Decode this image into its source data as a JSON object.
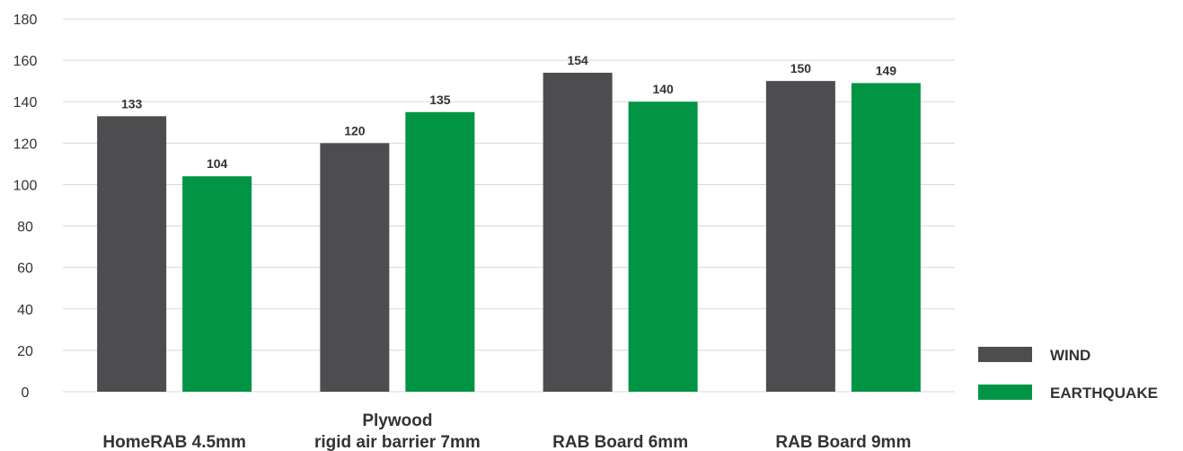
{
  "chart_data": {
    "type": "bar",
    "categories": [
      [
        "HomeRAB 4.5mm"
      ],
      [
        "Plywood",
        "rigid air barrier 7mm"
      ],
      [
        "RAB Board 6mm"
      ],
      [
        "RAB Board 9mm"
      ]
    ],
    "series": [
      {
        "name": "WIND",
        "values": [
          133,
          120,
          154,
          150
        ],
        "color": "#4d4d4f"
      },
      {
        "name": "EARTHQUAKE",
        "values": [
          104,
          135,
          140,
          149
        ],
        "color": "#009444"
      }
    ],
    "ylim": [
      0,
      180
    ],
    "yticks": [
      0,
      20,
      40,
      60,
      80,
      100,
      120,
      140,
      160,
      180
    ],
    "grid": true,
    "legend_position": "bottom-right",
    "title": "",
    "xlabel": "",
    "ylabel": ""
  }
}
